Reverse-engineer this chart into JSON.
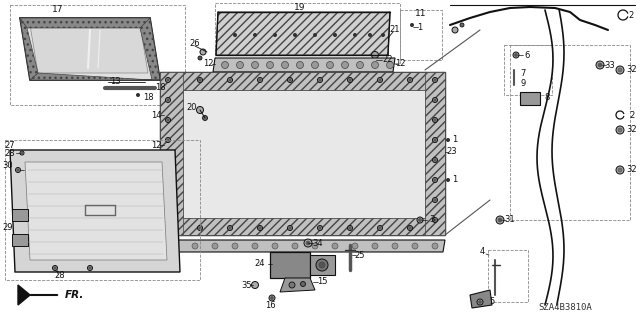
{
  "bg_color": "#ffffff",
  "fg_color": "#111111",
  "fig_width": 6.4,
  "fig_height": 3.19,
  "dpi": 100,
  "watermark_text": "SZA4B3810A",
  "arrow_label": "FR."
}
